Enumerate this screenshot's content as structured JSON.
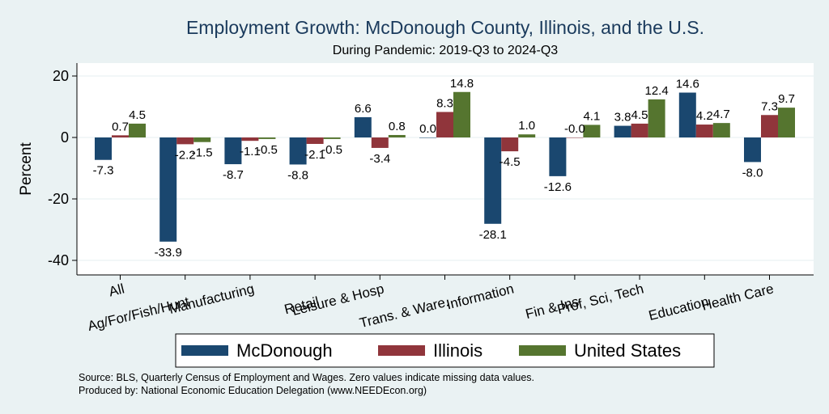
{
  "chart_data": {
    "type": "bar",
    "title": "Employment Growth: McDonough County, Illinois, and the U.S.",
    "subtitle": "During Pandemic: 2019-Q3 to 2024-Q3",
    "ylabel": "Percent",
    "xlabel": "",
    "ylim": [
      -45,
      25
    ],
    "yticks": [
      20,
      0,
      -20,
      -40
    ],
    "grid": true,
    "legend_position": "bottom",
    "categories": [
      "All",
      "Ag/For/Fish/Hunt",
      "Manufacturing",
      "Retail",
      "Leisure & Hosp",
      "Trans. & Ware.",
      "Information",
      "Fin & Ins",
      "Prof, Sci, Tech",
      "Education",
      "Health Care"
    ],
    "series": [
      {
        "name": "McDonough",
        "color": "#1a476f",
        "values": [
          -7.3,
          -33.9,
          -8.7,
          -8.8,
          6.6,
          0.0,
          -28.1,
          -12.6,
          3.8,
          14.6,
          -8.0
        ],
        "labels": [
          "-7.3",
          "-33.9",
          "-8.7",
          "-8.8",
          "6.6",
          "0.0",
          "-28.1",
          "-12.6",
          "3.8",
          "14.6",
          "-8.0"
        ]
      },
      {
        "name": "Illinois",
        "color": "#90353b",
        "values": [
          0.7,
          -2.2,
          -1.1,
          -2.1,
          -3.4,
          8.3,
          -4.5,
          -0.0,
          4.5,
          4.2,
          7.3
        ],
        "labels": [
          "0.7",
          "-2.2",
          "-1.1",
          "-2.1",
          "-3.4",
          "8.3",
          "-4.5",
          "-0.0",
          "4.5",
          "4.2",
          "7.3"
        ]
      },
      {
        "name": "United States",
        "color": "#55752f",
        "values": [
          4.5,
          -1.5,
          -0.5,
          -0.5,
          0.8,
          14.8,
          1.0,
          4.1,
          12.4,
          4.7,
          9.7
        ],
        "labels": [
          "4.5",
          "-1.5",
          "-0.5",
          "-0.5",
          "0.8",
          "14.8",
          "1.0",
          "4.1",
          "12.4",
          "4.7",
          "9.7"
        ]
      }
    ],
    "notes": [
      "Source: BLS, Quarterly Census of Employment and Wages. Zero values indicate missing data values.",
      "Produced by: National Economic Education Delegation (www.NEEDEcon.org)"
    ]
  }
}
